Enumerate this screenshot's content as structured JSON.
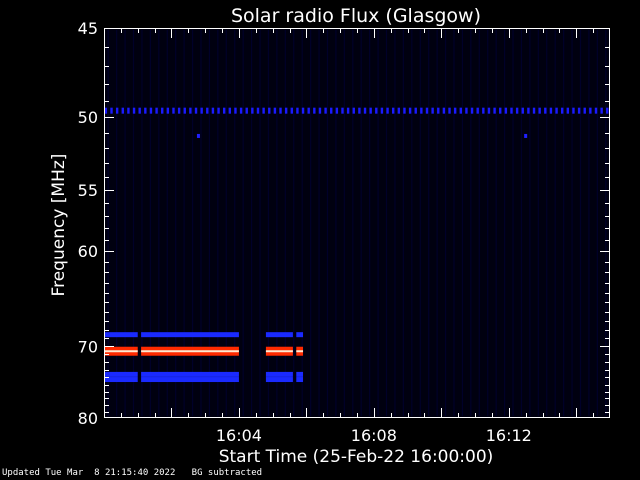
{
  "chart_data": {
    "type": "heatmap",
    "title": "Solar radio Flux (Glasgow)",
    "xlabel": "Start Time (25-Feb-22 16:00:00)",
    "ylabel": "Frequency [MHz]",
    "x_ticks": [
      "16:04",
      "16:08",
      "16:12"
    ],
    "x_tick_minutes": [
      4,
      8,
      12
    ],
    "xlim_minutes": [
      0,
      15
    ],
    "y_ticks": [
      45,
      50,
      55,
      60,
      70,
      80
    ],
    "ylim": [
      45,
      80
    ],
    "y_scale": "reciprocal",
    "background": "#000010",
    "features": [
      {
        "name": "dotted carrier line",
        "freq_mhz": 49.6,
        "start_min": 0,
        "end_min": 15,
        "color": "#1a1aff",
        "style": "dotted"
      },
      {
        "name": "isolated dot",
        "freq_mhz": 51.2,
        "start_min": 2.8,
        "end_min": 2.9,
        "color": "#2020ff",
        "style": "dot"
      },
      {
        "name": "isolated dot",
        "freq_mhz": 51.2,
        "start_min": 12.5,
        "end_min": 12.6,
        "color": "#2020ff",
        "style": "dot"
      },
      {
        "name": "band 68.6 MHz",
        "freq_mhz": 68.6,
        "segments": [
          [
            0,
            1.0
          ],
          [
            1.1,
            4.0
          ],
          [
            4.8,
            5.6
          ],
          [
            5.7,
            5.9
          ]
        ],
        "color": "#1a2aff",
        "style": "solid"
      },
      {
        "name": "band 70.6 MHz",
        "freq_mhz": 70.6,
        "segments": [
          [
            0,
            1.0
          ],
          [
            1.1,
            4.0
          ],
          [
            4.8,
            5.6
          ],
          [
            5.7,
            5.9
          ]
        ],
        "color": "#ff2a00",
        "core_color": "#ffe8d0",
        "style": "glow"
      },
      {
        "name": "band 73.6 MHz",
        "freq_mhz": 73.6,
        "segments": [
          [
            0,
            1.0
          ],
          [
            1.1,
            4.0
          ],
          [
            4.8,
            5.6
          ],
          [
            5.7,
            5.9
          ]
        ],
        "color": "#1a2aff",
        "style": "solid"
      },
      {
        "name": "band 74.3 MHz",
        "freq_mhz": 74.3,
        "segments": [
          [
            0,
            1.0
          ],
          [
            1.1,
            4.0
          ],
          [
            4.8,
            5.6
          ],
          [
            5.7,
            5.9
          ]
        ],
        "color": "#1a2aff",
        "style": "solid"
      }
    ]
  },
  "footer": {
    "updated": "Updated Tue Mar  8 21:15:40 2022",
    "note": "BG subtracted"
  }
}
